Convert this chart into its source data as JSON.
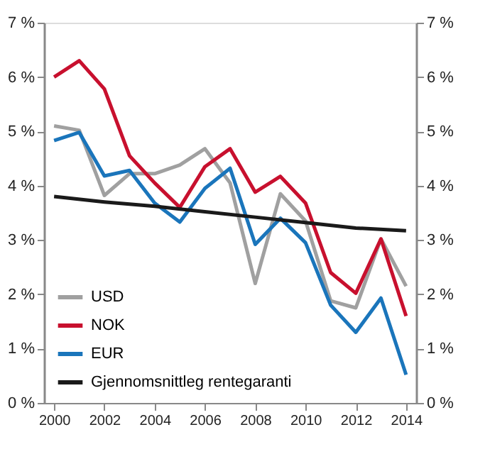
{
  "chart_data": {
    "type": "line",
    "x": [
      2000,
      2001,
      2002,
      2003,
      2004,
      2005,
      2006,
      2007,
      2008,
      2009,
      2010,
      2011,
      2012,
      2013,
      2014
    ],
    "series": [
      {
        "name": "USD",
        "color": "#a0a0a0",
        "values": [
          5.1,
          5.02,
          3.82,
          4.22,
          4.22,
          4.38,
          4.68,
          4.05,
          2.2,
          3.85,
          3.35,
          1.88,
          1.75,
          3.02,
          2.15
        ]
      },
      {
        "name": "NOK",
        "color": "#c8102e",
        "values": [
          6.0,
          6.3,
          5.78,
          4.55,
          4.05,
          3.6,
          4.35,
          4.68,
          3.88,
          4.17,
          3.68,
          2.4,
          2.02,
          3.02,
          1.6
        ]
      },
      {
        "name": "EUR",
        "color": "#1a75bb",
        "values": [
          4.83,
          4.98,
          4.18,
          4.28,
          3.68,
          3.33,
          3.95,
          4.32,
          2.92,
          3.4,
          2.95,
          1.8,
          1.3,
          1.93,
          0.52
        ]
      },
      {
        "name": "Gjennomsnittleg rentegaranti",
        "color": "#1a1a1a",
        "x": [
          2000,
          2002,
          2004,
          2006,
          2008,
          2010,
          2012,
          2014
        ],
        "values": [
          3.8,
          3.7,
          3.62,
          3.52,
          3.42,
          3.32,
          3.22,
          3.17
        ]
      }
    ],
    "xlim": [
      1999.6,
      2014.4
    ],
    "xticks": [
      2000,
      2002,
      2004,
      2006,
      2008,
      2010,
      2012,
      2014
    ],
    "ylim": [
      0,
      7
    ],
    "yticks": [
      {
        "value": 0,
        "label": "0 %"
      },
      {
        "value": 1,
        "label": "1 %"
      },
      {
        "value": 2,
        "label": "2 %"
      },
      {
        "value": 3,
        "label": "3 %"
      },
      {
        "value": 4,
        "label": "4 %"
      },
      {
        "value": 5,
        "label": "5 %"
      },
      {
        "value": 6,
        "label": "6 %"
      },
      {
        "value": 7,
        "label": "7 %"
      }
    ],
    "y2lim": [
      0,
      7
    ],
    "y2ticks": [
      {
        "value": 0,
        "label": "0 %"
      },
      {
        "value": 1,
        "label": "1 %"
      },
      {
        "value": 2,
        "label": "2 %"
      },
      {
        "value": 3,
        "label": "3 %"
      },
      {
        "value": 4,
        "label": "4 %"
      },
      {
        "value": 5,
        "label": "5 %"
      },
      {
        "value": 6,
        "label": "6 %"
      },
      {
        "value": 7,
        "label": "7 %"
      }
    ],
    "legend": "bottom left",
    "grid": false,
    "line_style": "solid",
    "marker": "none"
  }
}
